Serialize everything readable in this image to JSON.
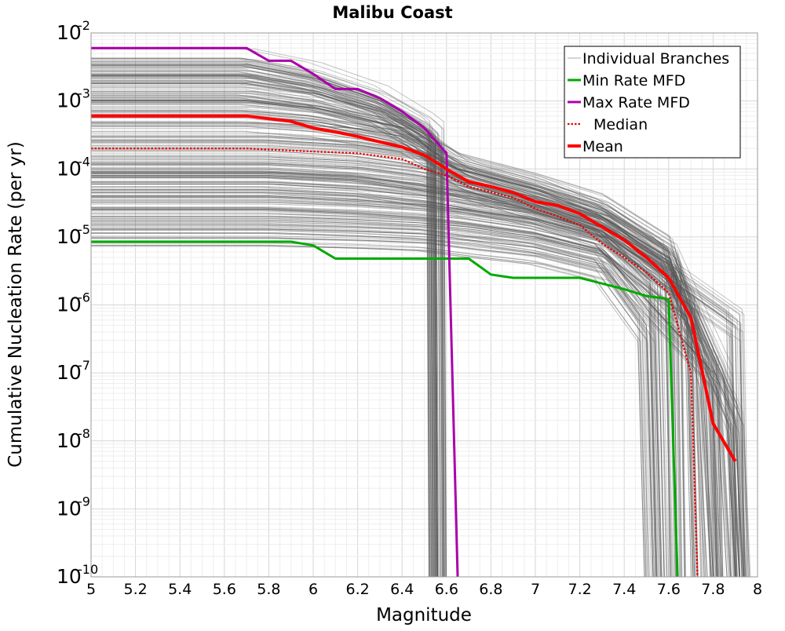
{
  "chart_data": {
    "type": "line",
    "title": "Malibu Coast",
    "xlabel": "Magnitude",
    "ylabel": "Cumulative Nucleation Rate (per yr)",
    "xlim": [
      5,
      8
    ],
    "ylim": [
      1e-10,
      0.01
    ],
    "yscale": "log",
    "grid": true,
    "legend_position": "top-right",
    "x_ticks": [
      "5",
      "5.2",
      "5.4",
      "5.6",
      "5.8",
      "6",
      "6.2",
      "6.4",
      "6.6",
      "6.8",
      "7",
      "7.2",
      "7.4",
      "7.6",
      "7.8",
      "8"
    ],
    "y_ticks": [
      {
        "base": "10",
        "exp": "-10",
        "value": 1e-10
      },
      {
        "base": "10",
        "exp": "-9",
        "value": 1e-09
      },
      {
        "base": "10",
        "exp": "-8",
        "value": 1e-08
      },
      {
        "base": "10",
        "exp": "-7",
        "value": 1e-07
      },
      {
        "base": "10",
        "exp": "-6",
        "value": 1e-06
      },
      {
        "base": "10",
        "exp": "-5",
        "value": 1e-05
      },
      {
        "base": "10",
        "exp": "-4",
        "value": 0.0001
      },
      {
        "base": "10",
        "exp": "-3",
        "value": 0.001
      },
      {
        "base": "10",
        "exp": "-2",
        "value": 0.01
      }
    ],
    "series": [
      {
        "name": "Individual Branches",
        "color": "#555555",
        "style": "thin",
        "note_count": "many overlapping branches",
        "curves": [
          {
            "x": [
              5,
              5.7,
              6.0,
              6.3,
              6.5,
              6.55,
              6.56
            ],
            "y": [
              0.0035,
              0.0035,
              0.0022,
              0.001,
              0.0004,
              0.0003,
              1e-10
            ]
          },
          {
            "x": [
              5,
              5.7,
              6.0,
              6.3,
              6.5,
              6.55,
              6.56
            ],
            "y": [
              0.0025,
              0.0025,
              0.0017,
              0.0008,
              0.00035,
              0.00025,
              1e-10
            ]
          },
          {
            "x": [
              5,
              5.7,
              6.0,
              6.3,
              6.5,
              6.55,
              6.56
            ],
            "y": [
              0.0018,
              0.0018,
              0.0013,
              0.0007,
              0.0003,
              0.0002,
              1e-10
            ]
          },
          {
            "x": [
              5,
              5.7,
              6.0,
              6.4,
              6.65,
              7.0,
              7.3,
              7.5,
              7.62,
              7.64
            ],
            "y": [
              0.001,
              0.001,
              0.0008,
              0.0004,
              0.0001,
              5e-05,
              2e-05,
              7e-06,
              3e-06,
              1e-10
            ]
          },
          {
            "x": [
              5,
              5.7,
              6.0,
              6.4,
              6.65,
              7.0,
              7.3,
              7.6,
              7.75,
              7.8
            ],
            "y": [
              0.0006,
              0.0006,
              0.0005,
              0.0003,
              0.0001,
              5e-05,
              2.5e-05,
              6e-06,
              1e-07,
              1e-10
            ]
          },
          {
            "x": [
              5,
              5.8,
              6.2,
              6.5,
              6.7,
              7.0,
              7.3,
              7.6,
              7.85,
              7.9
            ],
            "y": [
              0.0003,
              0.0003,
              0.00025,
              0.00018,
              8e-05,
              4e-05,
              2e-05,
              5e-06,
              8e-08,
              1e-10
            ]
          },
          {
            "x": [
              5,
              5.8,
              6.2,
              6.5,
              6.7,
              7.0,
              7.3,
              7.6,
              7.9,
              7.93
            ],
            "y": [
              0.00015,
              0.00015,
              0.00013,
              0.0001,
              6e-05,
              3e-05,
              1.5e-05,
              4e-06,
              2e-08,
              1e-10
            ]
          },
          {
            "x": [
              5,
              5.8,
              6.2,
              6.5,
              6.7,
              7.0,
              7.3,
              7.55,
              7.58
            ],
            "y": [
              8e-05,
              8e-05,
              7e-05,
              5e-05,
              4e-05,
              2.5e-05,
              1.2e-05,
              2e-06,
              1e-10
            ]
          },
          {
            "x": [
              5,
              5.8,
              6.2,
              6.5,
              6.7,
              7.0,
              7.3,
              7.7,
              7.73
            ],
            "y": [
              4e-05,
              4e-05,
              3.5e-05,
              3e-05,
              2.5e-05,
              1.8e-05,
              1e-05,
              1e-06,
              1e-10
            ]
          },
          {
            "x": [
              5,
              5.8,
              6.2,
              6.5,
              6.7,
              7.0,
              7.3,
              7.8,
              7.82
            ],
            "y": [
              2e-05,
              2e-05,
              1.8e-05,
              1.6e-05,
              1.4e-05,
              1e-05,
              6e-06,
              1e-07,
              1e-10
            ]
          },
          {
            "x": [
              5,
              5.8,
              6.2,
              6.5,
              6.7,
              7.0,
              7.3,
              7.5,
              7.53
            ],
            "y": [
              1.3e-05,
              1.3e-05,
              1.2e-05,
              1.1e-05,
              9e-06,
              7e-06,
              4e-06,
              5e-07,
              1e-10
            ]
          },
          {
            "x": [
              5,
              5.8,
              6.2,
              6.5,
              6.7,
              7.0,
              7.3,
              7.9,
              7.92
            ],
            "y": [
              6e-05,
              6e-05,
              5e-05,
              4e-05,
              3e-05,
              2.2e-05,
              1.2e-05,
              5e-07,
              1e-10
            ]
          }
        ]
      },
      {
        "name": "Min Rate MFD",
        "color": "#00aa00",
        "style": "solid",
        "x": [
          5,
          5.9,
          6.0,
          6.1,
          6.7,
          6.8,
          6.9,
          7.2,
          7.4,
          7.5,
          7.58,
          7.6,
          7.64
        ],
        "y": [
          8.5e-06,
          8.5e-06,
          7.5e-06,
          4.8e-06,
          4.8e-06,
          2.8e-06,
          2.5e-06,
          2.5e-06,
          1.7e-06,
          1.35e-06,
          1.25e-06,
          1.2e-06,
          1e-10
        ]
      },
      {
        "name": "Max Rate MFD",
        "color": "#aa00aa",
        "style": "solid",
        "x": [
          5,
          5.7,
          5.8,
          5.9,
          6.0,
          6.1,
          6.2,
          6.3,
          6.4,
          6.5,
          6.6,
          6.65
        ],
        "y": [
          0.006,
          0.006,
          0.0039,
          0.0039,
          0.0025,
          0.0015,
          0.0015,
          0.0011,
          0.0007,
          0.0004,
          0.00017,
          1e-10
        ]
      },
      {
        "name": "Median",
        "color": "#ee0000",
        "style": "dotted",
        "x": [
          5,
          5.7,
          6.0,
          6.2,
          6.4,
          6.5,
          6.6,
          6.7,
          6.9,
          7.0,
          7.1,
          7.2,
          7.3,
          7.4,
          7.5,
          7.6,
          7.7,
          7.72,
          7.73
        ],
        "y": [
          0.0002,
          0.0002,
          0.00018,
          0.00017,
          0.00014,
          0.0001,
          8e-05,
          5.5e-05,
          3.8e-05,
          2.6e-05,
          2e-05,
          1.5e-05,
          8e-06,
          5e-06,
          3e-06,
          1.5e-06,
          1e-07,
          1e-09,
          1e-10
        ]
      },
      {
        "name": "Mean",
        "color": "#ff0000",
        "style": "thick",
        "x": [
          5,
          5.7,
          5.9,
          6.0,
          6.1,
          6.2,
          6.3,
          6.4,
          6.5,
          6.6,
          6.7,
          6.8,
          6.9,
          7.0,
          7.1,
          7.2,
          7.3,
          7.4,
          7.5,
          7.6,
          7.7,
          7.8,
          7.9
        ],
        "y": [
          0.0006,
          0.0006,
          0.0005,
          0.0004,
          0.00035,
          0.0003,
          0.00025,
          0.00021,
          0.00016,
          0.0001,
          6.5e-05,
          5.5e-05,
          4.5e-05,
          3.3e-05,
          2.9e-05,
          2.2e-05,
          1.4e-05,
          9e-06,
          5e-06,
          2.5e-06,
          6.5e-07,
          1.8e-08,
          5e-09
        ]
      }
    ]
  }
}
